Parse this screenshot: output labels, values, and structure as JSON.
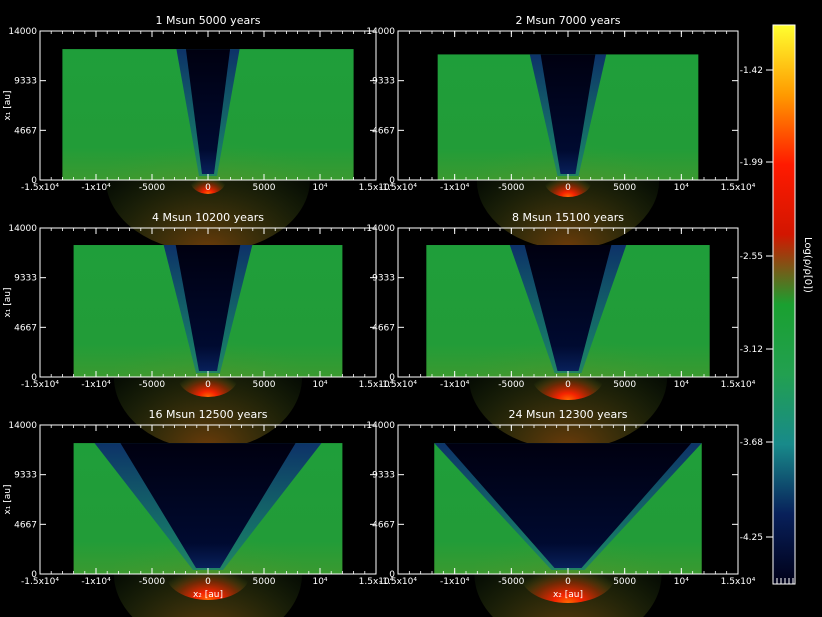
{
  "colorbar": {
    "label": "Log(ρ/ρ[0])",
    "ticks": [
      "-1.42",
      "-1.99",
      "-2.55",
      "-3.12",
      "-3.68",
      "-4.25"
    ],
    "colors": [
      "#ffff30",
      "#ff9a00",
      "#ff1a00",
      "#d21600",
      "#1aa030",
      "#22a050",
      "#188a8a",
      "#08205a",
      "#000018"
    ]
  },
  "axes": {
    "xlabel": "x₂ [au]",
    "ylabel": "x₁ [au]",
    "xticks": [
      "-1.5x10⁴",
      "-1x10⁴",
      "-5000",
      "0",
      "5000",
      "10⁴",
      "1.5x10⁴"
    ],
    "yticks": [
      "0",
      "4667",
      "9333",
      "14000"
    ]
  },
  "chart_data": [
    {
      "type": "heatmap",
      "title": "1 Msun 5000 years",
      "xlim": [
        -15000,
        15000
      ],
      "ylim": [
        0,
        14000
      ],
      "xlabel": "",
      "ylabel": "x₁ [au]",
      "data_extent": {
        "x": [
          -13000,
          13000
        ],
        "y": [
          0,
          12300
        ]
      },
      "cone_half_angle_deg": 7
    },
    {
      "type": "heatmap",
      "title": "2 Msun 7000 years",
      "xlim": [
        -15000,
        15000
      ],
      "ylim": [
        0,
        14000
      ],
      "xlabel": "",
      "ylabel": "",
      "data_extent": {
        "x": [
          -11500,
          11500
        ],
        "y": [
          0,
          11800
        ]
      },
      "cone_half_angle_deg": 9
    },
    {
      "type": "heatmap",
      "title": "4 Msun 10200 years",
      "xlim": [
        -15000,
        15000
      ],
      "ylim": [
        0,
        14000
      ],
      "xlabel": "",
      "ylabel": "x₁ [au]",
      "data_extent": {
        "x": [
          -12000,
          12000
        ],
        "y": [
          0,
          12400
        ]
      },
      "cone_half_angle_deg": 10
    },
    {
      "type": "heatmap",
      "title": "8 Msun 15100 years",
      "xlim": [
        -15000,
        15000
      ],
      "ylim": [
        0,
        14000
      ],
      "xlabel": "",
      "ylabel": "",
      "data_extent": {
        "x": [
          -12500,
          12500
        ],
        "y": [
          0,
          12400
        ]
      },
      "cone_half_angle_deg": 14
    },
    {
      "type": "heatmap",
      "title": "16 Msun 12500 years",
      "xlim": [
        -15000,
        15000
      ],
      "ylim": [
        0,
        14000
      ],
      "xlabel": "x₂ [au]",
      "ylabel": "x₁ [au]",
      "data_extent": {
        "x": [
          -12000,
          12000
        ],
        "y": [
          0,
          12300
        ]
      },
      "cone_half_angle_deg": 30
    },
    {
      "type": "heatmap",
      "title": "24 Msun 12300 years",
      "xlim": [
        -15000,
        15000
      ],
      "ylim": [
        0,
        14000
      ],
      "xlabel": "x₂ [au]",
      "ylabel": "",
      "data_extent": {
        "x": [
          -11800,
          11800
        ],
        "y": [
          0,
          12300
        ]
      },
      "cone_half_angle_deg": 40
    }
  ]
}
